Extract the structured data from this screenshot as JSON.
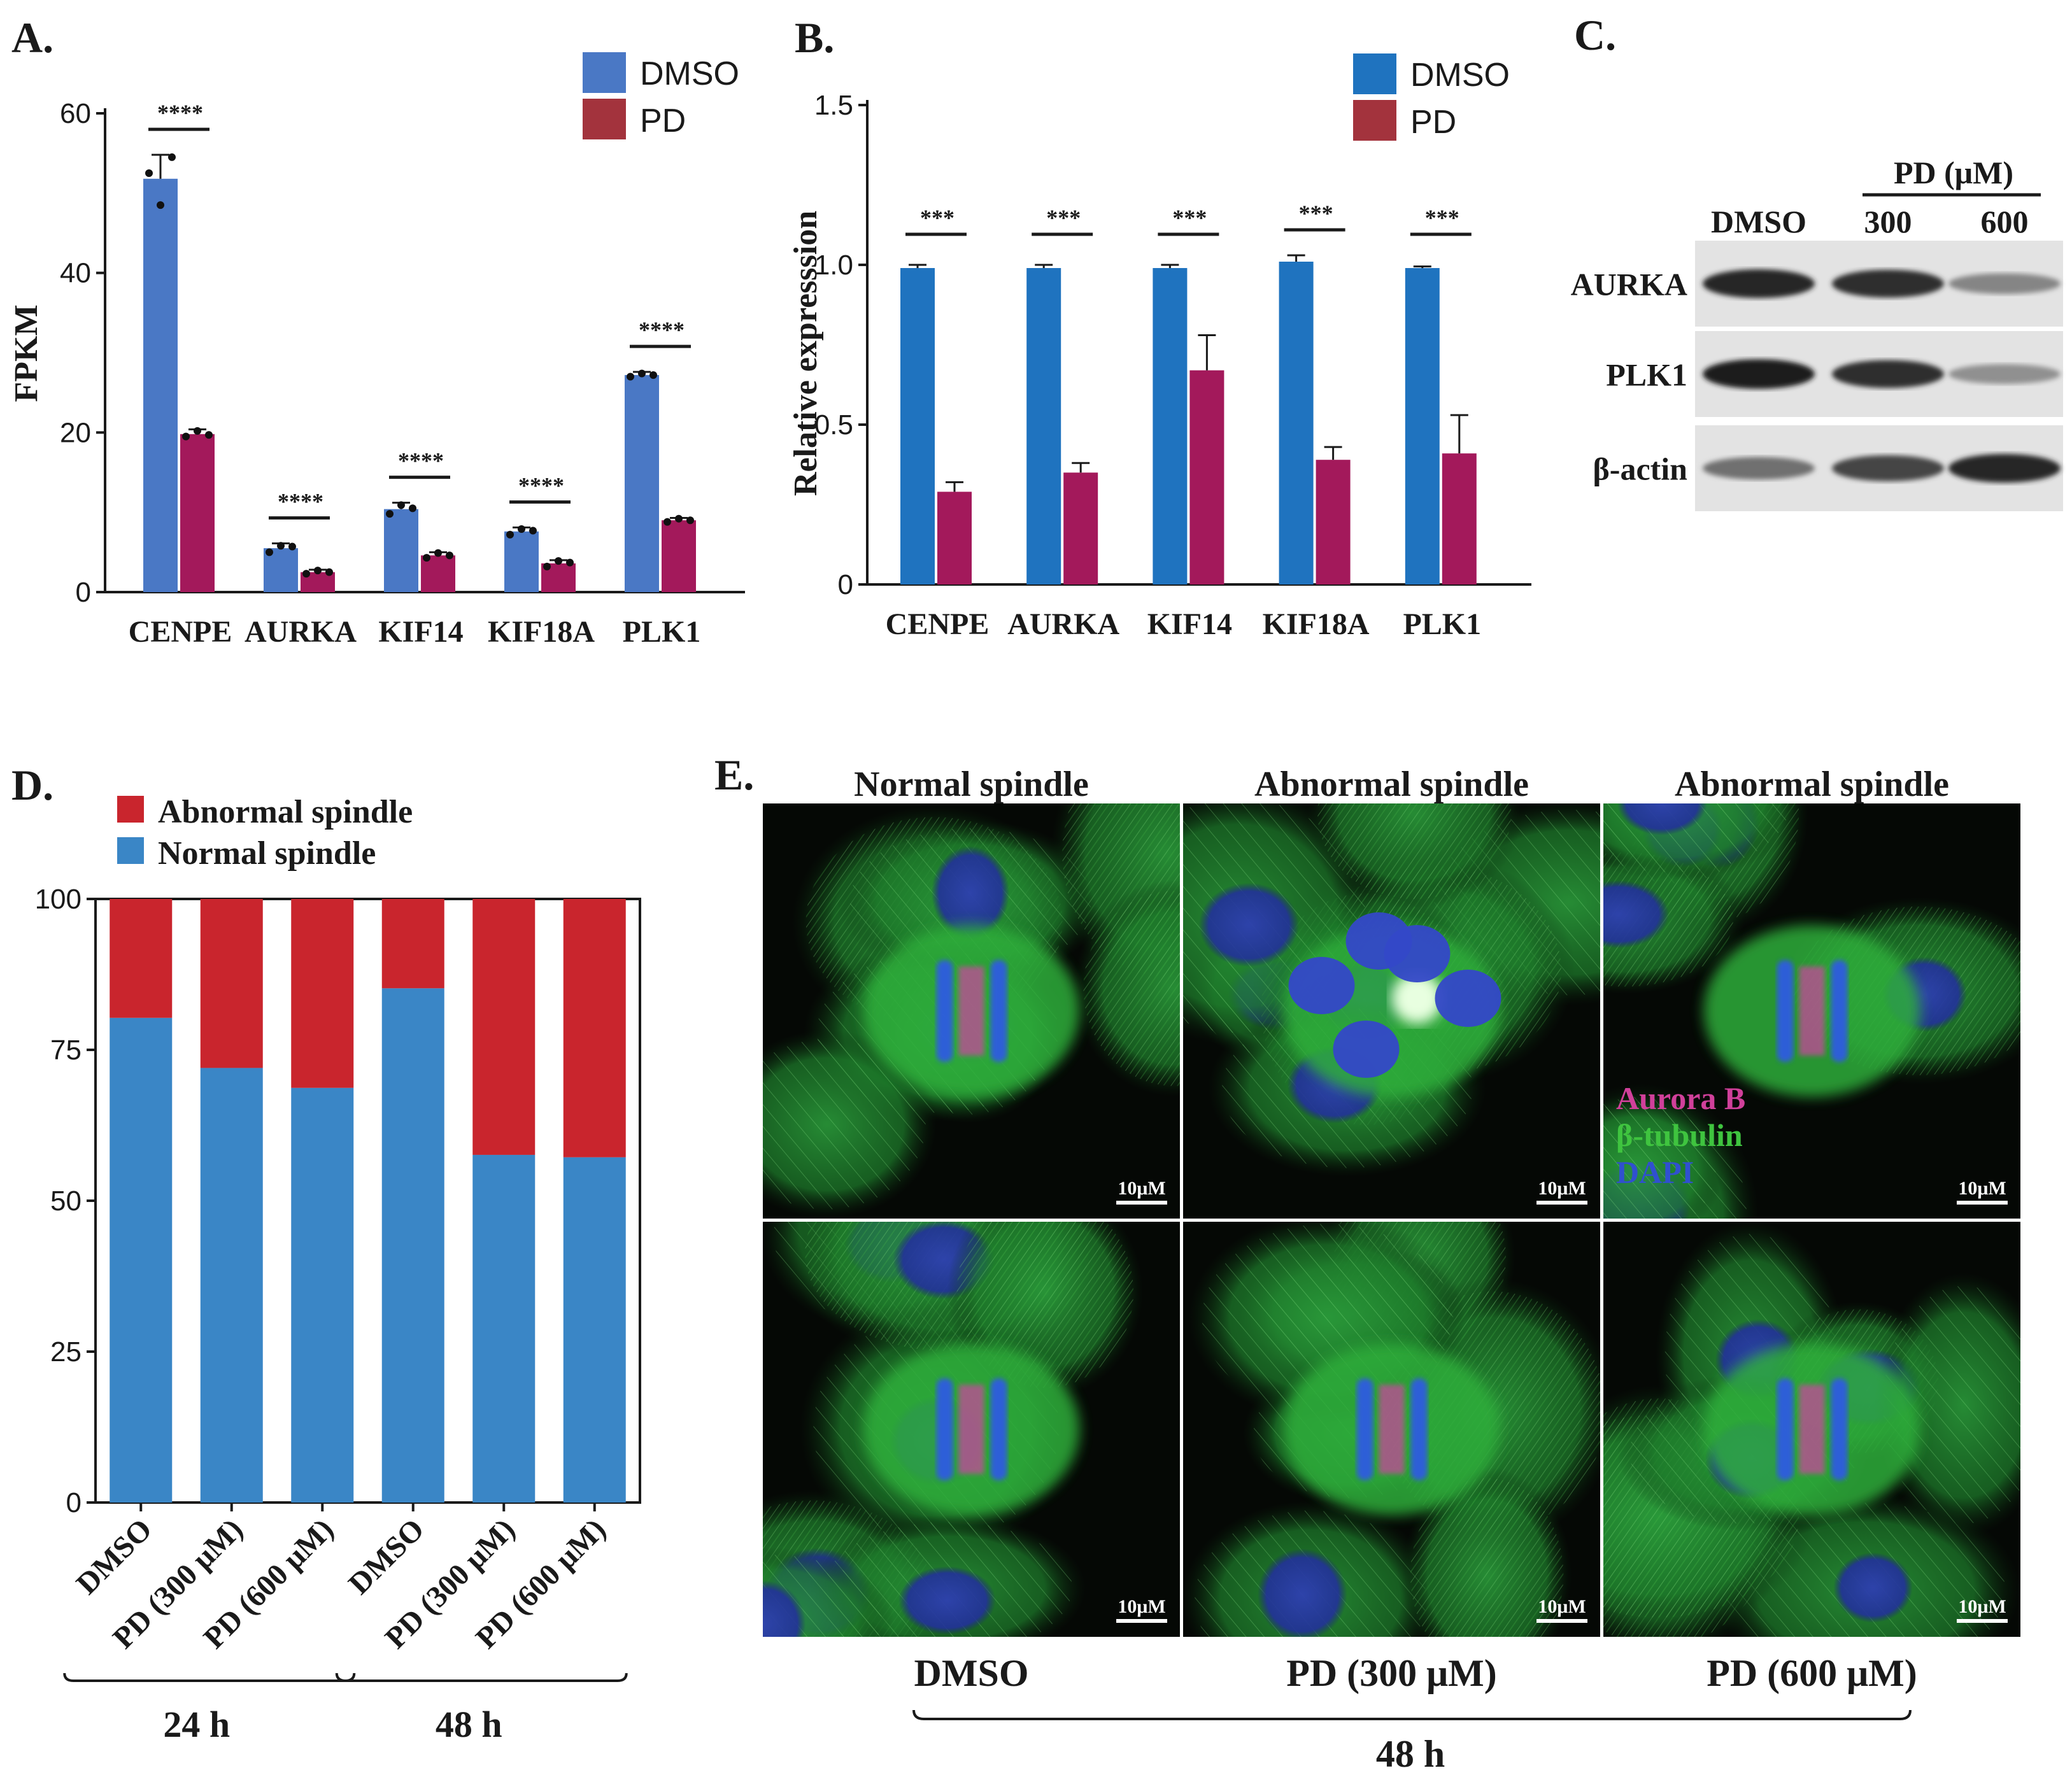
{
  "colors": {
    "dmso_a": "#4a78c5",
    "pd_a": "#a3195b",
    "dmso_b": "#1f73bf",
    "pd_b": "#a3195b",
    "legend_pd": "#a3333d",
    "abnormal": "#c9252d",
    "normal": "#3a86c6"
  },
  "panelA": {
    "letter": "A.",
    "chart_data": {
      "type": "bar",
      "categories": [
        "CENPE",
        "AURKA",
        "KIF14",
        "KIF18A",
        "PLK1"
      ],
      "series": [
        {
          "name": "DMSO",
          "values": [
            51.8,
            5.5,
            10.4,
            7.6,
            27.2
          ],
          "errors": [
            3.0,
            0.6,
            0.8,
            0.5,
            0.4
          ],
          "points": [
            [
              52.5,
              48.5,
              54.5
            ],
            [
              5.0,
              5.8,
              5.7
            ],
            [
              9.8,
              10.9,
              10.5
            ],
            [
              7.2,
              7.9,
              7.7
            ],
            [
              27.0,
              27.4,
              27.2
            ]
          ]
        },
        {
          "name": "PD",
          "values": [
            19.8,
            2.5,
            4.6,
            3.6,
            9.0
          ],
          "errors": [
            0.6,
            0.3,
            0.4,
            0.4,
            0.3
          ],
          "points": [
            [
              19.5,
              20.2,
              19.7
            ],
            [
              2.3,
              2.7,
              2.5
            ],
            [
              4.3,
              4.9,
              4.6
            ],
            [
              3.2,
              3.9,
              3.7
            ],
            [
              8.8,
              9.2,
              9.0
            ]
          ]
        }
      ],
      "ylabel": "FPKM",
      "ylim": [
        0,
        60
      ],
      "yticks": [
        0,
        20,
        40,
        60
      ],
      "significance": [
        "****",
        "****",
        "****",
        "****",
        "****"
      ],
      "legend": "top-right"
    }
  },
  "panelB": {
    "letter": "B.",
    "chart_data": {
      "type": "bar",
      "categories": [
        "CENPE",
        "AURKA",
        "KIF14",
        "KIF18A",
        "PLK1"
      ],
      "series": [
        {
          "name": "DMSO",
          "values": [
            0.99,
            0.99,
            0.99,
            1.01,
            0.99
          ],
          "errors": [
            0.01,
            0.01,
            0.01,
            0.02,
            0.005
          ]
        },
        {
          "name": "PD",
          "values": [
            0.29,
            0.35,
            0.67,
            0.39,
            0.41
          ],
          "errors": [
            0.03,
            0.03,
            0.11,
            0.04,
            0.12
          ]
        }
      ],
      "ylabel": "Relative expresssion",
      "ylim": [
        0,
        1.5
      ],
      "yticks": [
        "0",
        "0.5",
        "1.0",
        "1.5"
      ],
      "significance": [
        "***",
        "***",
        "***",
        "***",
        "***"
      ],
      "legend": "top-right"
    }
  },
  "panelC": {
    "letter": "C.",
    "header": "PD (μM)",
    "lanes": [
      "DMSO",
      "300",
      "600"
    ],
    "rows": [
      {
        "label": "AURKA",
        "intensity": [
          0.9,
          0.85,
          0.45
        ]
      },
      {
        "label": "PLK1",
        "intensity": [
          0.95,
          0.85,
          0.4
        ]
      },
      {
        "label": "β-actin",
        "intensity": [
          0.55,
          0.75,
          0.9
        ]
      }
    ]
  },
  "panelD": {
    "letter": "D.",
    "chart_data": {
      "type": "bar",
      "stacked": true,
      "categories": [
        "DMSO",
        "PD (300 μM)",
        "PD (600 μM)",
        "DMSO",
        "PD (300 μM)",
        "PD (600 μM)"
      ],
      "series": [
        {
          "name": "Normal spindle",
          "values": [
            80.3,
            72.0,
            68.7,
            85.2,
            57.6,
            57.2
          ]
        },
        {
          "name": "Abnormal spindle",
          "values": [
            19.7,
            28.0,
            31.3,
            14.8,
            42.4,
            42.8
          ]
        }
      ],
      "ylim": [
        0,
        100
      ],
      "yticks": [
        0,
        25,
        50,
        75,
        100
      ],
      "groups": [
        {
          "label": "24 h",
          "span": [
            0,
            2
          ]
        },
        {
          "label": "48 h",
          "span": [
            3,
            5
          ]
        }
      ],
      "legend": "top-left"
    }
  },
  "panelE": {
    "letter": "E.",
    "column_titles": [
      "Normal spindle",
      "Abnormal spindle",
      "Abnormal spindle"
    ],
    "channels": [
      {
        "label": "Aurora B",
        "color": "#d0409a"
      },
      {
        "label": "β-tubulin",
        "color": "#3fc43f"
      },
      {
        "label": "DAPI",
        "color": "#3050d0"
      }
    ],
    "scale_bar": "10μM",
    "conditions": [
      "DMSO",
      "PD (300 μM)",
      "PD (600 μM)"
    ],
    "time": "48 h"
  }
}
